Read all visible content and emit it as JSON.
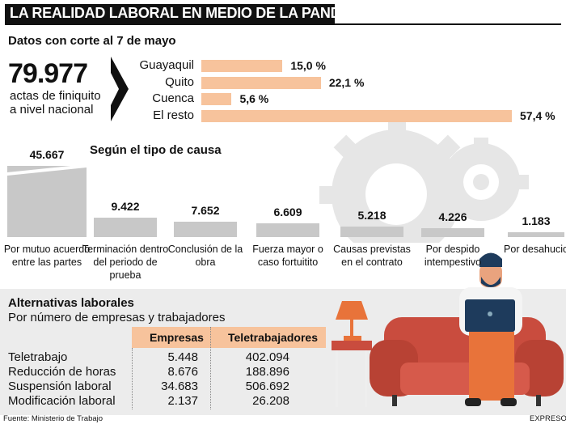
{
  "header": {
    "title": "LA REALIDAD LABORAL EN MEDIO DE LA PANDEMIA"
  },
  "subtitle": "Datos con corte al 7 de mayo",
  "total": {
    "value": "79.977",
    "desc_line1": "actas de finiquito",
    "desc_line2": "a  nivel nacional"
  },
  "cause_title": "Según el tipo de causa",
  "chart_data": [
    {
      "type": "bar",
      "orientation": "horizontal",
      "categories": [
        "Guayaquil",
        "Quito",
        "Cuenca",
        "El resto"
      ],
      "values": [
        15.0,
        22.1,
        5.6,
        57.4
      ],
      "value_labels": [
        "15,0 %",
        "22,1 %",
        "5,6 %",
        "57,4 %"
      ],
      "xlim": [
        0,
        57.4
      ],
      "color": "#f7c39c"
    },
    {
      "type": "bar",
      "orientation": "vertical",
      "title": "Según el tipo de causa",
      "categories": [
        "Por mutuo acuerdo entre las partes",
        "Terminación dentro del periodo de prueba",
        "Conclusión de la obra",
        "Fuerza mayor o caso fortuitito",
        "Causas previstas en el contrato",
        "Por despido intempestivo",
        "Por desahucio"
      ],
      "values": [
        45667,
        9422,
        7652,
        6609,
        5218,
        4226,
        1183
      ],
      "value_labels": [
        "45.667",
        "9.422",
        "7.652",
        "6.609",
        "5.218",
        "4.226",
        "1.183"
      ],
      "color": "#c8c8c8"
    },
    {
      "type": "table",
      "title": "Alternativas laborales",
      "subtitle": "Por número de empresas y trabajadores",
      "columns": [
        "Empresas",
        "Teletrabajadores"
      ],
      "rows": [
        {
          "label": "Teletrabajo",
          "empresas": "5.448",
          "teletrabajadores": "402.094"
        },
        {
          "label": "Reducción de horas",
          "empresas": "8.676",
          "teletrabajadores": "188.896"
        },
        {
          "label": "Suspensión laboral",
          "empresas": "34.683",
          "teletrabajadores": "506.692"
        },
        {
          "label": "Modificación laboral",
          "empresas": "2.137",
          "teletrabajadores": "26.208"
        }
      ]
    }
  ],
  "footer": {
    "source": "Fuente: Ministerio de Trabajo",
    "brand": "EXPRESO"
  },
  "colors": {
    "accent": "#f7c39c",
    "bar": "#c8c8c8",
    "sofa": "#c94c3e",
    "lamp": "#e8733a",
    "gear": "#e6e6e6"
  }
}
